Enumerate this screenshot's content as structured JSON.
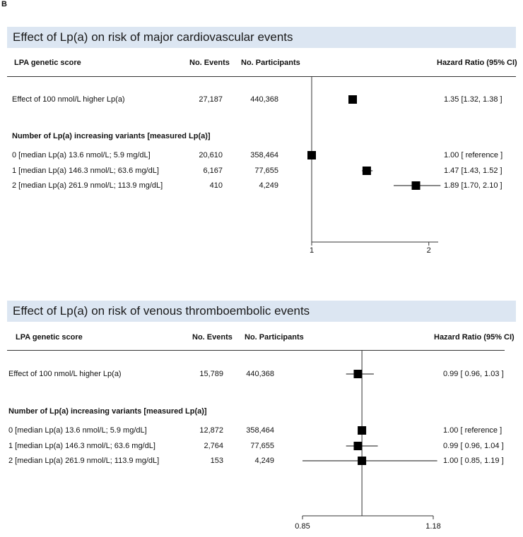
{
  "panel_letter": "B",
  "chart_data": [
    {
      "type": "forest",
      "title": "Effect of Lp(a) on risk of major cardiovascular events",
      "columns": {
        "label": "LPA genetic score",
        "events": "No. Events",
        "participants": "No. Participants",
        "hr": "Hazard Ratio (95% CI)"
      },
      "continuous": {
        "label": "Effect of 100 nmol/L higher Lp(a)",
        "events": "27,187",
        "participants": "440,368",
        "hr": 1.35,
        "lo": 1.32,
        "hi": 1.38,
        "hr_text": "1.35 [1.32, 1.38 ]"
      },
      "subheader": "Number of Lp(a) increasing variants [measured Lp(a)]",
      "rows": [
        {
          "label": "0  [median Lp(a)  13.6 nmol/L;     5.9 mg/dL]",
          "events": "20,610",
          "participants": "358,464",
          "hr": 1.0,
          "lo": 1.0,
          "hi": 1.0,
          "hr_text": "1.00 [ reference ]"
        },
        {
          "label": "1  [median Lp(a) 146.3 nmol/L;  63.6 mg/dL]",
          "events": "6,167",
          "participants": "77,655",
          "hr": 1.47,
          "lo": 1.43,
          "hi": 1.52,
          "hr_text": "1.47 [1.43, 1.52 ]"
        },
        {
          "label": "2  [median Lp(a) 261.9 nmol/L; 113.9 mg/dL]",
          "events": "410",
          "participants": "4,249",
          "hr": 1.89,
          "lo": 1.7,
          "hi": 2.1,
          "hr_text": "1.89 [1.70, 2.10 ]"
        }
      ],
      "xlim": [
        1.0,
        2.08
      ],
      "reference": 1.0,
      "xticks": [
        {
          "value": 1,
          "label": "1"
        },
        {
          "value": 2,
          "label": "2"
        }
      ]
    },
    {
      "type": "forest",
      "title": "Effect of Lp(a) on risk of venous thromboembolic events",
      "columns": {
        "label": "LPA genetic score",
        "events": "No. Events",
        "participants": "No. Participants",
        "hr": "Hazard Ratio (95% CI)"
      },
      "continuous": {
        "label": "Effect of 100 nmol/L higher Lp(a)",
        "events": "15,789",
        "participants": "440,368",
        "hr": 0.99,
        "lo": 0.96,
        "hi": 1.03,
        "hr_text": "0.99 [ 0.96, 1.03 ]"
      },
      "subheader": "Number of Lp(a) increasing variants [measured Lp(a)]",
      "rows": [
        {
          "label": "0  [median Lp(a)  13.6 nmol/L;     5.9 mg/dL]",
          "events": "12,872",
          "participants": "358,464",
          "hr": 1.0,
          "lo": 1.0,
          "hi": 1.0,
          "hr_text": "1.00 [ reference ]"
        },
        {
          "label": "1  [median Lp(a) 146.3 nmol/L;  63.6 mg/dL]",
          "events": "2,764",
          "participants": "77,655",
          "hr": 0.99,
          "lo": 0.96,
          "hi": 1.04,
          "hr_text": "0.99 [ 0.96, 1.04 ]"
        },
        {
          "label": "2  [median Lp(a) 261.9 nmol/L; 113.9 mg/dL]",
          "events": "153",
          "participants": "4,249",
          "hr": 1.0,
          "lo": 0.85,
          "hi": 1.19,
          "hr_text": "1.00 [ 0.85, 1.19 ]"
        }
      ],
      "xlim": [
        0.85,
        1.18
      ],
      "reference": 1.0,
      "xticks": [
        {
          "value": 0.85,
          "label": "0.85"
        },
        {
          "value": 1.18,
          "label": "1.18"
        }
      ]
    }
  ]
}
